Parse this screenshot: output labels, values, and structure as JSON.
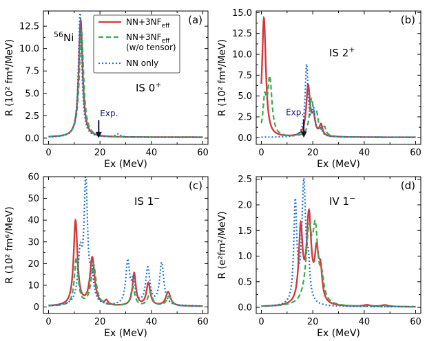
{
  "chart_data": [
    {
      "type": "line",
      "id": "a",
      "panel_label": "(a)",
      "annotation": "IS 0+",
      "nucleus": "56Ni",
      "xlabel": "Ex (MeV)",
      "ylabel": "R (10² fm⁴/MeV)",
      "xlim": [
        -2,
        62
      ],
      "ylim": [
        -0.7,
        14.2
      ],
      "xticks": [
        0,
        20,
        40,
        60
      ],
      "yticks": [
        0.0,
        2.5,
        5.0,
        7.5,
        10.0,
        12.5
      ],
      "ytick_labels": [
        "0.0",
        "2.5",
        "5.0",
        "7.5",
        "10.0",
        "12.5"
      ],
      "exp": {
        "label": "Exp.",
        "x": 19.5,
        "y_tip": 0.0,
        "y_tail": 2.0
      },
      "legend": [
        {
          "label": "NN+3NF",
          "sub": "eff",
          "color": "#d23a3a",
          "dash": "solid"
        },
        {
          "label": "NN+3NF",
          "sub": "eff",
          "extra": "(w/o tensor)",
          "color": "#3aaa55",
          "dash": "dashed"
        },
        {
          "label": "NN only",
          "color": "#1f6fd1",
          "dash": "dotted"
        }
      ],
      "series": [
        {
          "name": "NN+3NFeff",
          "color": "#d23a3a",
          "dash": "solid",
          "peaks": [
            [
              12.5,
              13.1,
              0.9
            ]
          ],
          "base": 0.1
        },
        {
          "name": "NN+3NFeff (w/o tensor)",
          "color": "#3aaa55",
          "dash": "dashed",
          "peaks": [
            [
              12.8,
              12.0,
              1.0
            ]
          ],
          "base": 0.1
        },
        {
          "name": "NN only",
          "color": "#1f6fd1",
          "dash": "dotted",
          "peaks": [
            [
              12.3,
              13.9,
              0.8
            ],
            [
              27.0,
              0.35,
              1.2
            ]
          ],
          "base": 0.08
        }
      ]
    },
    {
      "type": "line",
      "id": "b",
      "panel_label": "(b)",
      "annotation": "IS 2+",
      "xlabel": "Ex (MeV)",
      "ylabel": "R (10² fm⁴/MeV)",
      "xlim": [
        -2,
        62
      ],
      "ylim": [
        -0.8,
        15.2
      ],
      "xticks": [
        0,
        20,
        40,
        60
      ],
      "yticks": [
        0.0,
        2.5,
        5.0,
        7.5,
        10.0,
        12.5,
        15.0
      ],
      "ytick_labels": [
        "0.0",
        "2.5",
        "5.0",
        "7.5",
        "10.0",
        "12.5",
        "15.0"
      ],
      "exp": {
        "label": "Exp.",
        "x": 16.5,
        "y_tip": 0.0,
        "y_tail": 2.2
      },
      "series": [
        {
          "name": "NN+3NFeff",
          "color": "#d23a3a",
          "dash": "solid",
          "peaks": [
            [
              1.0,
              14.3,
              0.9
            ],
            [
              18.2,
              6.0,
              0.9
            ],
            [
              20.3,
              2.0,
              0.8
            ],
            [
              23.2,
              1.3,
              0.7
            ]
          ],
          "base": 0.05
        },
        {
          "name": "NN+3NFeff (w/o tensor)",
          "color": "#3aaa55",
          "dash": "dashed",
          "peaks": [
            [
              1.3,
              4.0,
              0.8
            ],
            [
              3.3,
              6.8,
              1.0
            ],
            [
              19.5,
              4.3,
              1.0
            ],
            [
              21.5,
              2.2,
              0.8
            ],
            [
              24.5,
              1.0,
              0.8
            ]
          ],
          "base": 0.05
        },
        {
          "name": "NN only",
          "color": "#1f6fd1",
          "dash": "dotted",
          "peaks": [
            [
              17.6,
              8.5,
              0.7
            ],
            [
              20.2,
              3.2,
              0.8
            ],
            [
              23.0,
              1.0,
              0.7
            ]
          ],
          "base": 0.05
        }
      ]
    },
    {
      "type": "line",
      "id": "c",
      "panel_label": "(c)",
      "annotation": "IS 1−",
      "xlabel": "Ex (MeV)",
      "ylabel": "R (10² fm⁶/MeV)",
      "xlim": [
        -2,
        62
      ],
      "ylim": [
        -3,
        60
      ],
      "xticks": [
        0,
        20,
        40,
        60
      ],
      "yticks": [
        0,
        10,
        20,
        30,
        40,
        50,
        60
      ],
      "ytick_labels": [
        "0",
        "10",
        "20",
        "30",
        "40",
        "50",
        "60"
      ],
      "series": [
        {
          "name": "NN+3NFeff",
          "color": "#d23a3a",
          "dash": "solid",
          "peaks": [
            [
              10.5,
              39.0,
              0.9
            ],
            [
              17.0,
              22.0,
              1.1
            ],
            [
              22.5,
              2.0,
              0.7
            ],
            [
              33.3,
              15.0,
              0.8
            ],
            [
              38.8,
              10.5,
              0.9
            ],
            [
              46.5,
              6.5,
              1.1
            ]
          ],
          "base": 0.3
        },
        {
          "name": "NN+3NFeff (w/o tensor)",
          "color": "#3aaa55",
          "dash": "dashed",
          "peaks": [
            [
              10.8,
              22.0,
              0.9
            ],
            [
              17.5,
              19.0,
              1.2
            ],
            [
              32.8,
              9.0,
              0.9
            ],
            [
              39.5,
              6.5,
              1.0
            ],
            [
              46.8,
              4.5,
              1.1
            ]
          ],
          "base": 0.3
        },
        {
          "name": "NN only",
          "color": "#1f6fd1",
          "dash": "dotted",
          "peaks": [
            [
              12.3,
              22.0,
              1.0
            ],
            [
              14.5,
              56.0,
              0.8
            ],
            [
              16.8,
              13.0,
              0.8
            ],
            [
              30.8,
              20.0,
              0.9
            ],
            [
              33.0,
              11.0,
              0.8
            ],
            [
              38.6,
              17.0,
              1.0
            ],
            [
              44.0,
              19.5,
              1.0
            ]
          ],
          "base": 0.3
        }
      ]
    },
    {
      "type": "line",
      "id": "d",
      "panel_label": "(d)",
      "annotation": "IV 1−",
      "xlabel": "Ex (MeV)",
      "ylabel": "R (e²fm²/MeV)",
      "xlim": [
        -2,
        62
      ],
      "ylim": [
        -0.12,
        2.55
      ],
      "xticks": [
        0,
        20,
        40,
        60
      ],
      "yticks": [
        0.0,
        0.5,
        1.0,
        1.5,
        2.0,
        2.5
      ],
      "ytick_labels": [
        "0.0",
        "0.5",
        "1.0",
        "1.5",
        "2.0",
        "2.5"
      ],
      "series": [
        {
          "name": "NN+3NFeff",
          "color": "#d23a3a",
          "dash": "solid",
          "peaks": [
            [
              15.3,
              1.45,
              0.9
            ],
            [
              18.5,
              1.7,
              1.1
            ],
            [
              21.5,
              0.9,
              0.9
            ],
            [
              23.0,
              0.55,
              0.8
            ],
            [
              41.0,
              0.03,
              1.5
            ],
            [
              48.0,
              0.03,
              1.5
            ]
          ],
          "base": 0.01
        },
        {
          "name": "NN+3NFeff (w/o tensor)",
          "color": "#3aaa55",
          "dash": "dashed",
          "peaks": [
            [
              18.5,
              1.35,
              1.4
            ],
            [
              21.0,
              1.3,
              1.2
            ],
            [
              23.5,
              0.4,
              1.0
            ]
          ],
          "base": 0.01
        },
        {
          "name": "NN only",
          "color": "#1f6fd1",
          "dash": "dotted",
          "peaks": [
            [
              13.2,
              1.95,
              0.7
            ],
            [
              16.5,
              2.35,
              0.9
            ],
            [
              18.3,
              0.6,
              0.7
            ]
          ],
          "base": 0.01
        }
      ]
    }
  ]
}
